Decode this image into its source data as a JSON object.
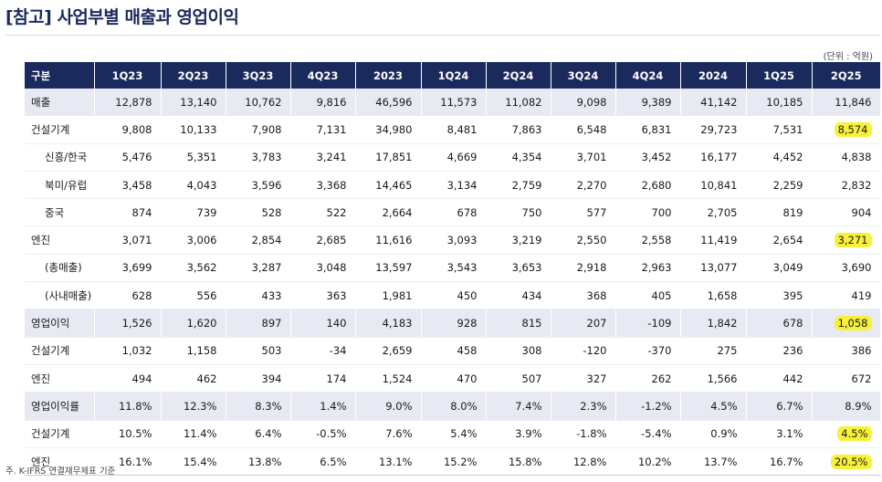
{
  "title": "[참고] 사업부별 매출과 영업이익",
  "unit": "(단위 : 억원)",
  "footnote": "주. K-IFRS 연결재무제표 기준",
  "highlight_color": "#f7f13a",
  "header_color": "#1b2a5c",
  "columns": [
    "구분",
    "1Q23",
    "2Q23",
    "3Q23",
    "4Q23",
    "2023",
    "1Q24",
    "2Q24",
    "3Q24",
    "4Q24",
    "2024",
    "1Q25",
    "2Q25"
  ],
  "rows": [
    {
      "label": "매출",
      "shade": true,
      "indent": false,
      "values": [
        "12,878",
        "13,140",
        "10,762",
        "9,816",
        "46,596",
        "11,573",
        "11,082",
        "9,098",
        "9,389",
        "41,142",
        "10,185",
        "11,846"
      ],
      "highlight_last": false
    },
    {
      "label": "건설기계",
      "shade": false,
      "indent": false,
      "values": [
        "9,808",
        "10,133",
        "7,908",
        "7,131",
        "34,980",
        "8,481",
        "7,863",
        "6,548",
        "6,831",
        "29,723",
        "7,531",
        "8,574"
      ],
      "highlight_last": true
    },
    {
      "label": "신흥/한국",
      "shade": false,
      "indent": true,
      "values": [
        "5,476",
        "5,351",
        "3,783",
        "3,241",
        "17,851",
        "4,669",
        "4,354",
        "3,701",
        "3,452",
        "16,177",
        "4,452",
        "4,838"
      ],
      "highlight_last": false
    },
    {
      "label": "북미/유럽",
      "shade": false,
      "indent": true,
      "values": [
        "3,458",
        "4,043",
        "3,596",
        "3,368",
        "14,465",
        "3,134",
        "2,759",
        "2,270",
        "2,680",
        "10,841",
        "2,259",
        "2,832"
      ],
      "highlight_last": false
    },
    {
      "label": "중국",
      "shade": false,
      "indent": true,
      "values": [
        "874",
        "739",
        "528",
        "522",
        "2,664",
        "678",
        "750",
        "577",
        "700",
        "2,705",
        "819",
        "904"
      ],
      "highlight_last": false
    },
    {
      "label": "엔진",
      "shade": false,
      "indent": false,
      "values": [
        "3,071",
        "3,006",
        "2,854",
        "2,685",
        "11,616",
        "3,093",
        "3,219",
        "2,550",
        "2,558",
        "11,419",
        "2,654",
        "3,271"
      ],
      "highlight_last": true
    },
    {
      "label": "(총매출)",
      "shade": false,
      "indent": true,
      "values": [
        "3,699",
        "3,562",
        "3,287",
        "3,048",
        "13,597",
        "3,543",
        "3,653",
        "2,918",
        "2,963",
        "13,077",
        "3,049",
        "3,690"
      ],
      "highlight_last": false
    },
    {
      "label": "(사내매출)",
      "shade": false,
      "indent": true,
      "values": [
        "628",
        "556",
        "433",
        "363",
        "1,981",
        "450",
        "434",
        "368",
        "405",
        "1,658",
        "395",
        "419"
      ],
      "highlight_last": false
    },
    {
      "label": "영업이익",
      "shade": true,
      "indent": false,
      "values": [
        "1,526",
        "1,620",
        "897",
        "140",
        "4,183",
        "928",
        "815",
        "207",
        "-109",
        "1,842",
        "678",
        "1,058"
      ],
      "highlight_last": true
    },
    {
      "label": "건설기계",
      "shade": false,
      "indent": false,
      "values": [
        "1,032",
        "1,158",
        "503",
        "-34",
        "2,659",
        "458",
        "308",
        "-120",
        "-370",
        "275",
        "236",
        "386"
      ],
      "highlight_last": false
    },
    {
      "label": "엔진",
      "shade": false,
      "indent": false,
      "values": [
        "494",
        "462",
        "394",
        "174",
        "1,524",
        "470",
        "507",
        "327",
        "262",
        "1,566",
        "442",
        "672"
      ],
      "highlight_last": false
    },
    {
      "label": "영업이익률",
      "shade": true,
      "indent": false,
      "values": [
        "11.8%",
        "12.3%",
        "8.3%",
        "1.4%",
        "9.0%",
        "8.0%",
        "7.4%",
        "2.3%",
        "-1.2%",
        "4.5%",
        "6.7%",
        "8.9%"
      ],
      "highlight_last": false
    },
    {
      "label": "건설기계",
      "shade": false,
      "indent": false,
      "values": [
        "10.5%",
        "11.4%",
        "6.4%",
        "-0.5%",
        "7.6%",
        "5.4%",
        "3.9%",
        "-1.8%",
        "-5.4%",
        "0.9%",
        "3.1%",
        "4.5%"
      ],
      "highlight_last": true
    },
    {
      "label": "엔진",
      "shade": false,
      "indent": false,
      "values": [
        "16.1%",
        "15.4%",
        "13.8%",
        "6.5%",
        "13.1%",
        "15.2%",
        "15.8%",
        "12.8%",
        "10.2%",
        "13.7%",
        "16.7%",
        "20.5%"
      ],
      "highlight_last": true
    }
  ]
}
